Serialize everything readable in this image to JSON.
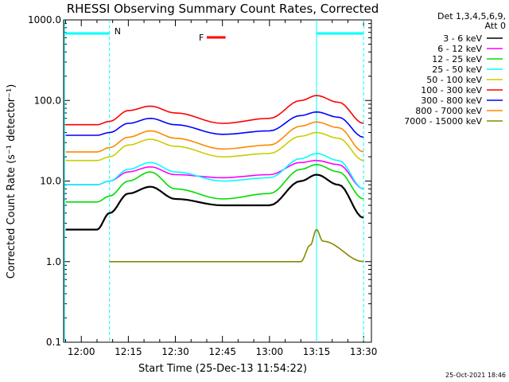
{
  "chart_data": {
    "type": "line",
    "title": "RHESSI Observing Summary Count Rates, Corrected",
    "xlabel": "Start Time (25-Dec-13 11:54:22)",
    "ylabel": "Corrected Count Rate (s⁻¹ detector⁻¹)",
    "yscale": "log",
    "ylim": [
      0.1,
      1000
    ],
    "xlim": [
      "11:54:22",
      "13:32:30"
    ],
    "y_tick_labels": [
      "1000.0",
      "100.0",
      "10.0",
      "1.0",
      "0.1"
    ],
    "x_tick_labels": [
      "12:00",
      "12:15",
      "12:30",
      "12:45",
      "13:00",
      "13:15",
      "13:30"
    ],
    "detector_info": [
      "Det 1,3,4,5,6,9,",
      "Att 0"
    ],
    "legend_position": "right",
    "series": [
      {
        "name": "3 - 6 keV",
        "color": "#000000",
        "times": [
          "11:55",
          "12:05",
          "12:09",
          "12:15",
          "12:22",
          "12:30",
          "12:45",
          "13:00",
          "13:10",
          "13:15",
          "13:22",
          "13:30"
        ],
        "values": [
          2.5,
          2.5,
          4,
          7,
          8.5,
          6,
          5,
          5,
          10,
          12,
          9,
          3.5
        ]
      },
      {
        "name": "6 - 12 keV",
        "color": "#ff00ff",
        "times": [
          "11:55",
          "12:05",
          "12:09",
          "12:15",
          "12:22",
          "12:30",
          "12:45",
          "13:00",
          "13:10",
          "13:15",
          "13:22",
          "13:30"
        ],
        "values": [
          9,
          9,
          10,
          13,
          15,
          12,
          11,
          12,
          17,
          18,
          16,
          8
        ]
      },
      {
        "name": "12 - 25 keV",
        "color": "#00dd00",
        "times": [
          "11:55",
          "12:05",
          "12:09",
          "12:15",
          "12:22",
          "12:30",
          "12:45",
          "13:00",
          "13:10",
          "13:15",
          "13:22",
          "13:30"
        ],
        "values": [
          5.5,
          5.5,
          6.5,
          10,
          13,
          8,
          6,
          7,
          14,
          16,
          13,
          6
        ]
      },
      {
        "name": "25 - 50 keV",
        "color": "#00ffff",
        "times": [
          "11:55",
          "12:05",
          "12:09",
          "12:15",
          "12:22",
          "12:30",
          "12:45",
          "13:00",
          "13:10",
          "13:15",
          "13:22",
          "13:30"
        ],
        "values": [
          9,
          9,
          10,
          14,
          17,
          13,
          10,
          11,
          19,
          22,
          18,
          8
        ]
      },
      {
        "name": "50 - 100 keV",
        "color": "#cccc00",
        "times": [
          "11:55",
          "12:05",
          "12:09",
          "12:15",
          "12:22",
          "12:30",
          "12:45",
          "13:00",
          "13:10",
          "13:15",
          "13:22",
          "13:30"
        ],
        "values": [
          18,
          18,
          20,
          28,
          33,
          27,
          20,
          22,
          36,
          40,
          34,
          18
        ]
      },
      {
        "name": "100 - 300 keV",
        "color": "#ff0000",
        "times": [
          "11:55",
          "12:05",
          "12:09",
          "12:15",
          "12:22",
          "12:30",
          "12:45",
          "13:00",
          "13:10",
          "13:15",
          "13:22",
          "13:30"
        ],
        "values": [
          50,
          50,
          55,
          75,
          85,
          70,
          52,
          60,
          100,
          115,
          95,
          52
        ]
      },
      {
        "name": "300 - 800 keV",
        "color": "#0000ff",
        "times": [
          "11:55",
          "12:05",
          "12:09",
          "12:15",
          "12:22",
          "12:30",
          "12:45",
          "13:00",
          "13:10",
          "13:15",
          "13:22",
          "13:30"
        ],
        "values": [
          37,
          37,
          40,
          52,
          60,
          50,
          38,
          42,
          65,
          72,
          62,
          35
        ]
      },
      {
        "name": "800 - 7000 keV",
        "color": "#ff8800",
        "times": [
          "11:55",
          "12:05",
          "12:09",
          "12:15",
          "12:22",
          "12:30",
          "12:45",
          "13:00",
          "13:10",
          "13:15",
          "13:22",
          "13:30"
        ],
        "values": [
          23,
          23,
          26,
          35,
          42,
          34,
          25,
          28,
          48,
          54,
          46,
          23
        ]
      },
      {
        "name": "7000 - 15000 keV",
        "color": "#888800",
        "times": [
          "12:09",
          "12:12",
          "12:22",
          "12:30",
          "12:45",
          "13:00",
          "13:10",
          "13:13",
          "13:15",
          "13:17",
          "13:30"
        ],
        "values": [
          1,
          1,
          1,
          1,
          1,
          1,
          1,
          1.6,
          2.5,
          1.8,
          1
        ]
      }
    ],
    "annotations": [
      {
        "label": "N",
        "color": "#00ffff"
      },
      {
        "label": "F",
        "color": "#ff0000"
      }
    ]
  },
  "footer_date": "25-Oct-2021 18:46"
}
